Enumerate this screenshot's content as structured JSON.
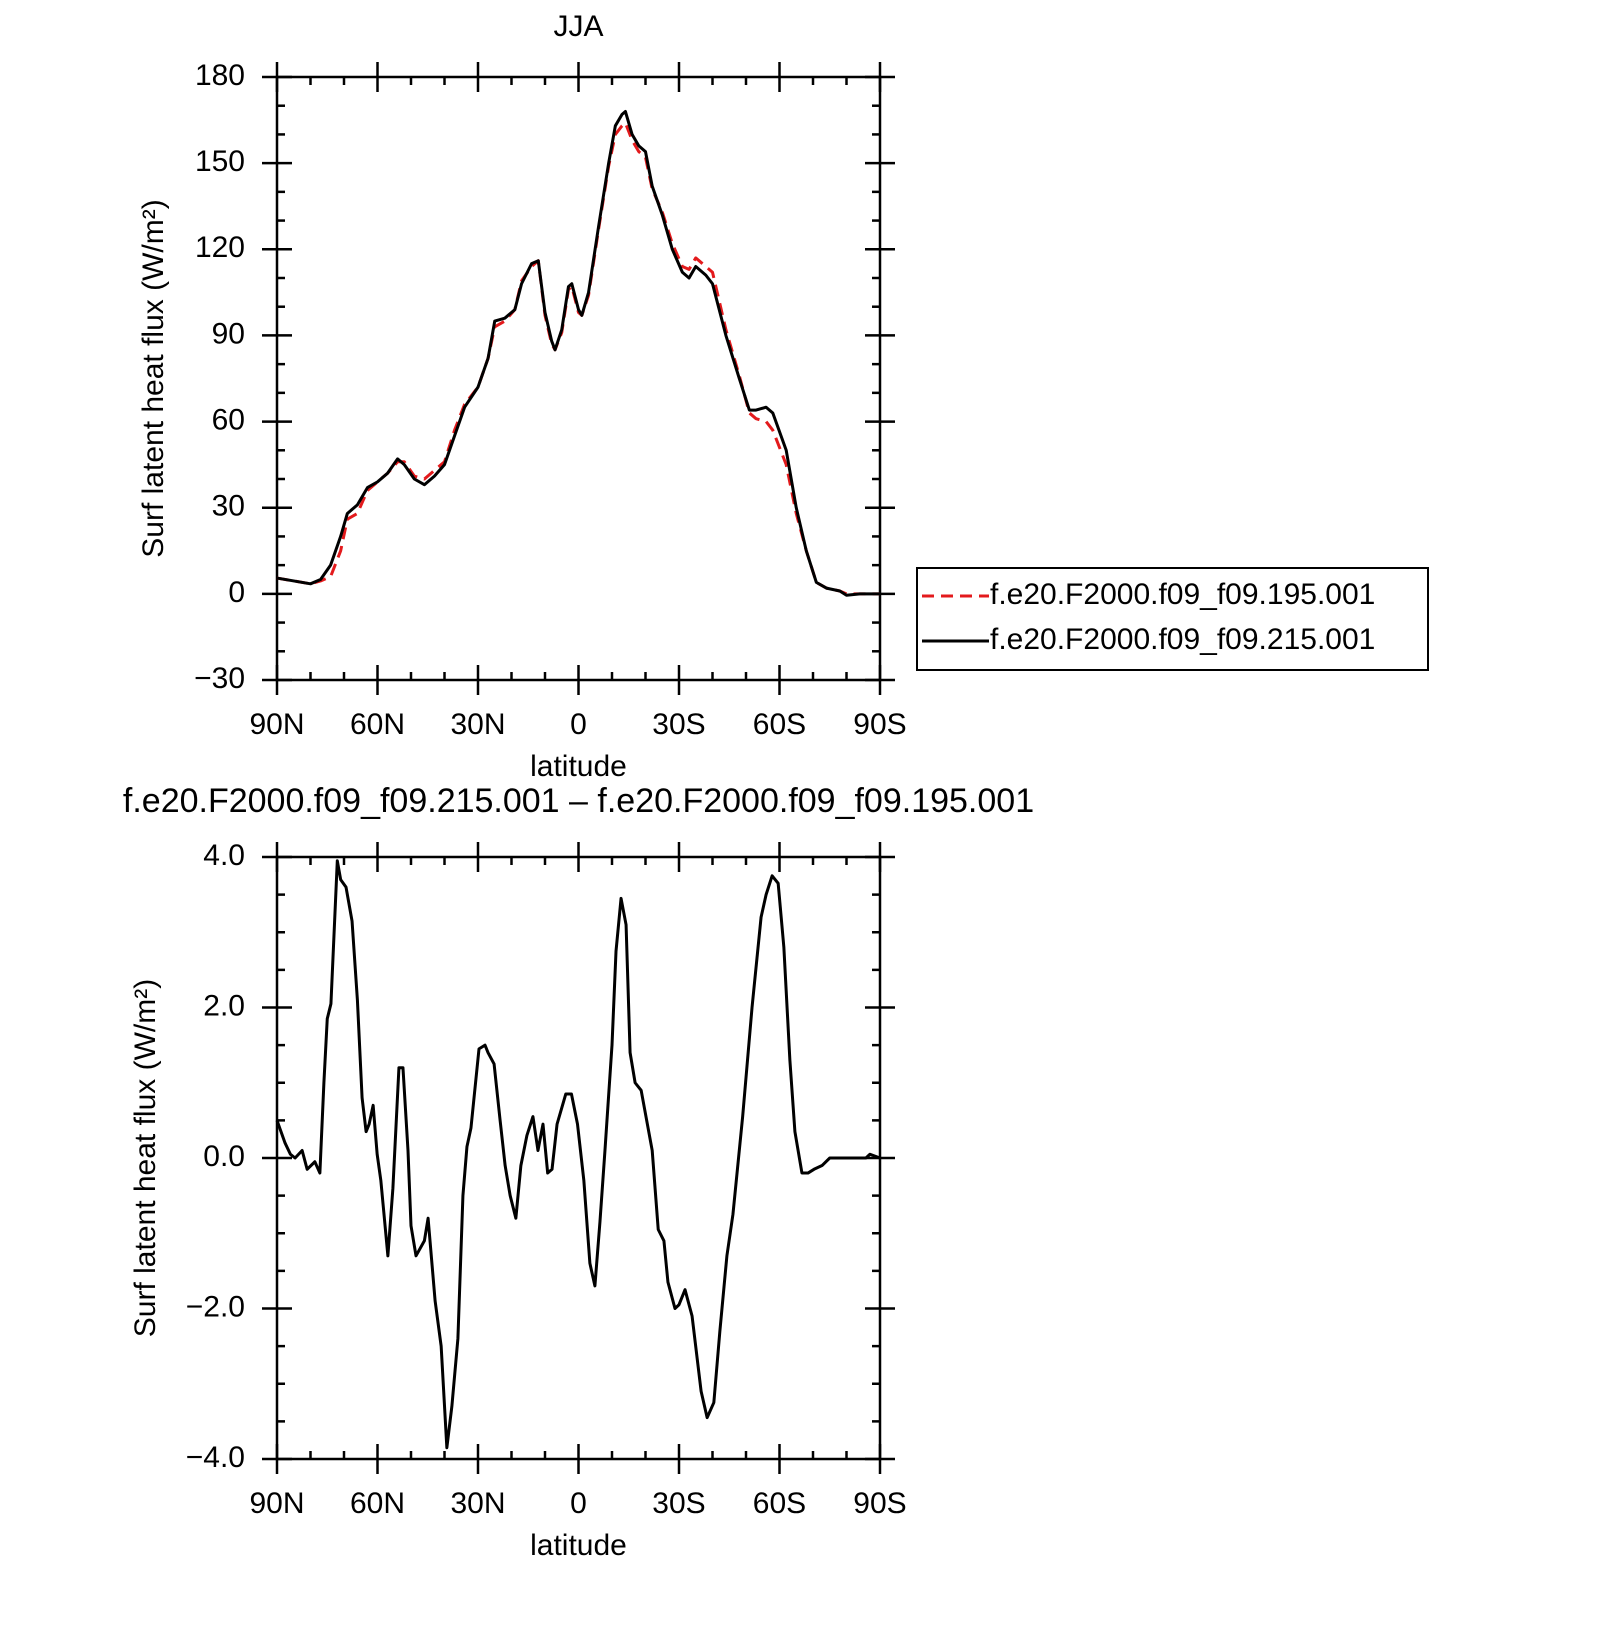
{
  "chart_data": [
    {
      "type": "line",
      "title": "JJA",
      "xlabel": "latitude",
      "ylabel": "Surf latent heat flux (W/m²)",
      "x": [
        90,
        85,
        80,
        77,
        74,
        71,
        69,
        66,
        63,
        60,
        57,
        54,
        52,
        49,
        46,
        43,
        40,
        37,
        34,
        30,
        27,
        25,
        22,
        19,
        17,
        14,
        12,
        10,
        8,
        7,
        5,
        3,
        2,
        0,
        -1,
        -3,
        -6,
        -9,
        -11,
        -13,
        -14,
        -16,
        -18,
        -20,
        -22,
        -25,
        -28,
        -31,
        -33,
        -35,
        -38,
        -40,
        -44,
        -48,
        -51,
        -53,
        -56,
        -58,
        -62,
        -65,
        -68,
        -71,
        -74,
        -78,
        -80,
        -84,
        -90
      ],
      "series": [
        {
          "name": "f.e20.F2000.f09_f09.195.001",
          "color": "#e31a1c",
          "style": "dashed",
          "values": [
            5.5,
            4.5,
            3.5,
            4.5,
            6,
            15,
            26,
            28,
            36,
            39,
            42,
            46,
            46,
            41,
            40,
            43,
            46,
            57,
            66,
            72,
            82,
            93,
            95,
            99,
            109,
            114,
            116,
            97,
            87,
            85,
            91,
            106,
            107,
            98,
            97,
            104,
            127,
            149,
            160,
            163,
            164,
            158,
            154,
            152,
            141,
            133,
            122,
            114,
            113,
            117,
            114,
            112,
            92,
            76,
            63,
            61,
            60,
            57,
            45,
            28,
            15,
            4,
            2,
            1,
            0,
            0,
            0
          ]
        },
        {
          "name": "f.e20.F2000.f09_f09.215.001",
          "color": "#000000",
          "style": "solid",
          "values": [
            5.5,
            4.5,
            3.5,
            5,
            10,
            20,
            28,
            31,
            37,
            39,
            42,
            47,
            45,
            40,
            38,
            41,
            45,
            55,
            65,
            72,
            82,
            95,
            96,
            99,
            108,
            115,
            116,
            98,
            88,
            85,
            92,
            107,
            108,
            99,
            97,
            105,
            128,
            150,
            163,
            167,
            168,
            160,
            156,
            154,
            142,
            132,
            120,
            112,
            110,
            114,
            111,
            108,
            90,
            75,
            64,
            64,
            65,
            63,
            50,
            30,
            15,
            4,
            2,
            1,
            -0.5,
            0,
            0
          ]
        }
      ],
      "xlim": [
        90,
        -90
      ],
      "xticks": [
        {
          "value": 90,
          "label": "90N"
        },
        {
          "value": 60,
          "label": "60N"
        },
        {
          "value": 30,
          "label": "30N"
        },
        0,
        {
          "value": -30,
          "label": "30S"
        },
        {
          "value": -60,
          "label": "60S"
        },
        {
          "value": -90,
          "label": "90S"
        }
      ],
      "minor_xticks": [
        80,
        70,
        50,
        40,
        20,
        10,
        -10,
        -20,
        -40,
        -50,
        -70,
        -80
      ],
      "ylim": [
        -30,
        180
      ],
      "yticks": [
        {
          "value": -30,
          "label": "−30"
        },
        0,
        30,
        60,
        90,
        120,
        150,
        180
      ],
      "minor_yticks": [
        -20,
        -10,
        10,
        20,
        40,
        50,
        70,
        80,
        100,
        110,
        130,
        140,
        160,
        170
      ],
      "legend": "right"
    },
    {
      "type": "line",
      "title": "f.e20.F2000.f09_f09.215.001 – f.e20.F2000.f09_f09.195.001",
      "xlabel": "latitude",
      "ylabel": "Surf latent heat flux (W/m²)",
      "x": [
        90,
        87.6,
        86,
        84.6,
        82.5,
        81,
        78.7,
        77.2,
        76,
        75,
        73.9,
        72,
        71,
        69.4,
        67.6,
        66,
        64.6,
        63.4,
        62.5,
        61.3,
        60.1,
        59,
        56.9,
        55.4,
        53.6,
        52.4,
        50.9,
        50,
        48.5,
        46,
        44.9,
        42.8,
        41,
        39.3,
        37.8,
        36,
        34.5,
        33.3,
        32.1,
        29.7,
        27.9,
        27,
        25.2,
        23.4,
        21.9,
        20.4,
        18.7,
        17.2,
        15.4,
        13.6,
        12.1,
        10.6,
        9.2,
        7.9,
        6.4,
        3.8,
        2.1,
        0.3,
        -1.6,
        -3.4,
        -4.9,
        -6.4,
        -7.9,
        -10,
        -11.2,
        -12.7,
        -14.2,
        -15.4,
        -16.9,
        -18.7,
        -22,
        -23.8,
        -25.5,
        -26.7,
        -28.8,
        -30,
        -31.8,
        -33.9,
        -36.6,
        -38.4,
        -40.4,
        -42.2,
        -44.3,
        -46.1,
        -49,
        -51.8,
        -54.5,
        -56,
        -57.8,
        -59.6,
        -61.3,
        -63.1,
        -64.6,
        -66.7,
        -68.5,
        -70.3,
        -72.7,
        -75,
        -80.4,
        -85.8,
        -87,
        -90
      ],
      "values": [
        0.5,
        0.2,
        0.05,
        0,
        0.1,
        -0.15,
        -0.05,
        -0.2,
        1.0,
        1.85,
        2.05,
        3.95,
        3.7,
        3.6,
        3.15,
        2.1,
        0.8,
        0.35,
        0.45,
        0.7,
        0.05,
        -0.3,
        -1.3,
        -0.4,
        1.2,
        1.2,
        0.1,
        -0.9,
        -1.3,
        -1.1,
        -0.8,
        -1.9,
        -2.5,
        -3.85,
        -3.3,
        -2.4,
        -0.5,
        0.15,
        0.4,
        1.45,
        1.5,
        1.4,
        1.25,
        0.5,
        -0.1,
        -0.5,
        -0.8,
        -0.1,
        0.3,
        0.55,
        0.1,
        0.45,
        -0.2,
        -0.15,
        0.45,
        0.85,
        0.85,
        0.45,
        -0.3,
        -1.4,
        -1.7,
        -0.85,
        0.1,
        1.5,
        2.75,
        3.45,
        3.1,
        1.4,
        1.0,
        0.9,
        0.1,
        -0.95,
        -1.1,
        -1.65,
        -2.0,
        -1.95,
        -1.75,
        -2.1,
        -3.1,
        -3.45,
        -3.25,
        -2.3,
        -1.3,
        -0.75,
        0.55,
        2.0,
        3.2,
        3.5,
        3.75,
        3.65,
        2.8,
        1.3,
        0.35,
        -0.2,
        -0.2,
        -0.15,
        -0.1,
        0,
        0,
        0,
        0.05,
        0
      ],
      "color": "#000000",
      "xlim": [
        90,
        -90
      ],
      "xticks": [
        {
          "value": 90,
          "label": "90N"
        },
        {
          "value": 60,
          "label": "60N"
        },
        {
          "value": 30,
          "label": "30N"
        },
        0,
        {
          "value": -30,
          "label": "30S"
        },
        {
          "value": -60,
          "label": "60S"
        },
        {
          "value": -90,
          "label": "90S"
        }
      ],
      "minor_xticks": [
        80,
        70,
        50,
        40,
        20,
        10,
        -10,
        -20,
        -40,
        -50,
        -70,
        -80
      ],
      "ylim": [
        -4,
        4
      ],
      "yticks": [
        {
          "value": -4,
          "label": "−4.0"
        },
        {
          "value": -2,
          "label": "−2.0"
        },
        {
          "value": 0,
          "label": "0.0"
        },
        {
          "value": 2,
          "label": "2.0"
        },
        {
          "value": 4,
          "label": "4.0"
        }
      ],
      "minor_yticks": [
        -3.5,
        -3,
        -2.5,
        -1.5,
        -1,
        -0.5,
        0.5,
        1,
        1.5,
        2.5,
        3,
        3.5
      ]
    }
  ]
}
